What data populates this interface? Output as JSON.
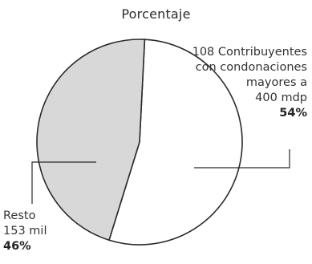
{
  "chart_data": {
    "type": "pie",
    "title": "Porcentaje",
    "slices": [
      {
        "lines": [
          "108 Contribuyentes",
          "con condonaciones",
          "mayores a",
          "400 mdp"
        ],
        "value": 54,
        "percent_label": "54%",
        "color": "#ffffff"
      },
      {
        "lines": [
          "Resto",
          "153 mil"
        ],
        "value": 46,
        "percent_label": "46%",
        "color": "#d8d8d8"
      }
    ]
  }
}
